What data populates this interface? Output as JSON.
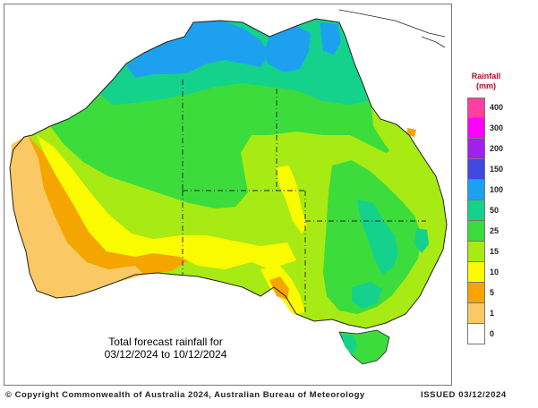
{
  "caption": {
    "line1": "Total forecast rainfall for",
    "line2": "03/12/2024 to 10/12/2024"
  },
  "legend": {
    "title_line1": "Rainfall",
    "title_line2": "(mm)",
    "classes": [
      {
        "label": "400",
        "color": "#ff40a0"
      },
      {
        "label": "300",
        "color": "#ff00ff"
      },
      {
        "label": "200",
        "color": "#a020f0"
      },
      {
        "label": "150",
        "color": "#3f48e0"
      },
      {
        "label": "100",
        "color": "#1ea0f0"
      },
      {
        "label": "50",
        "color": "#14d28c"
      },
      {
        "label": "25",
        "color": "#3cdc3c"
      },
      {
        "label": "15",
        "color": "#a8ea14"
      },
      {
        "label": "10",
        "color": "#fafa00"
      },
      {
        "label": "5",
        "color": "#f5a500"
      },
      {
        "label": "1",
        "color": "#fac864"
      },
      {
        "label": "0",
        "color": "#ffffff"
      }
    ]
  },
  "footer": {
    "copyright": "© Copyright Commonwealth of Australia 2024, Australian Bureau of Meteorology",
    "issued": "ISSUED 03/12/2024"
  },
  "map": {
    "region": "Australia",
    "colors": {
      "blue": "#1ea0f0",
      "teal": "#14d28c",
      "green": "#3cdc3c",
      "lime": "#a8ea14",
      "yellow": "#fafa00",
      "orange": "#f5a500",
      "tan": "#fac864",
      "outline": "#222222"
    }
  }
}
